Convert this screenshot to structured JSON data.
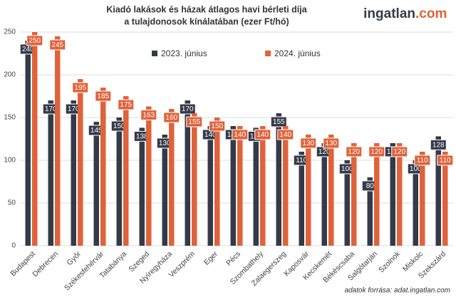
{
  "chart_data": {
    "type": "bar",
    "title": [
      "Kiadó lakások és házak átlagos havi bérleti díja",
      "a tulajdonosok kínálatában (ezer Ft/hó)"
    ],
    "categories": [
      "Budapest",
      "Debrecen",
      "Győr",
      "Székesfehérvár",
      "Tatabánya",
      "Szeged",
      "Nyíregyháza",
      "Veszprém",
      "Eger",
      "Pécs",
      "Szombathely",
      "Zalaegerszeg",
      "Kaposvár",
      "Kecskemét",
      "Békéscsaba",
      "Salgótarján",
      "Szolnok",
      "Miskolc",
      "Szekszárd"
    ],
    "series": [
      {
        "name": "2023. június",
        "color": "#343a48",
        "values": [
          240,
          170,
          170,
          145,
          150,
          138,
          130,
          170,
          140,
          140,
          138,
          155,
          110,
          120,
          100,
          80,
          120,
          100,
          128
        ]
      },
      {
        "name": "2024. június",
        "color": "#e0623a",
        "values": [
          250,
          245,
          195,
          185,
          175,
          163,
          160,
          155,
          150,
          140,
          140,
          140,
          130,
          130,
          120,
          120,
          120,
          110,
          110
        ]
      }
    ],
    "ylim": [
      0,
      250
    ],
    "yticks": [
      0,
      50,
      100,
      150,
      200,
      250
    ],
    "grid": true,
    "source": "adatok forrása: adat.ingatlan.com"
  },
  "logo": {
    "name": "ingatlan",
    "suffix": ".com"
  }
}
